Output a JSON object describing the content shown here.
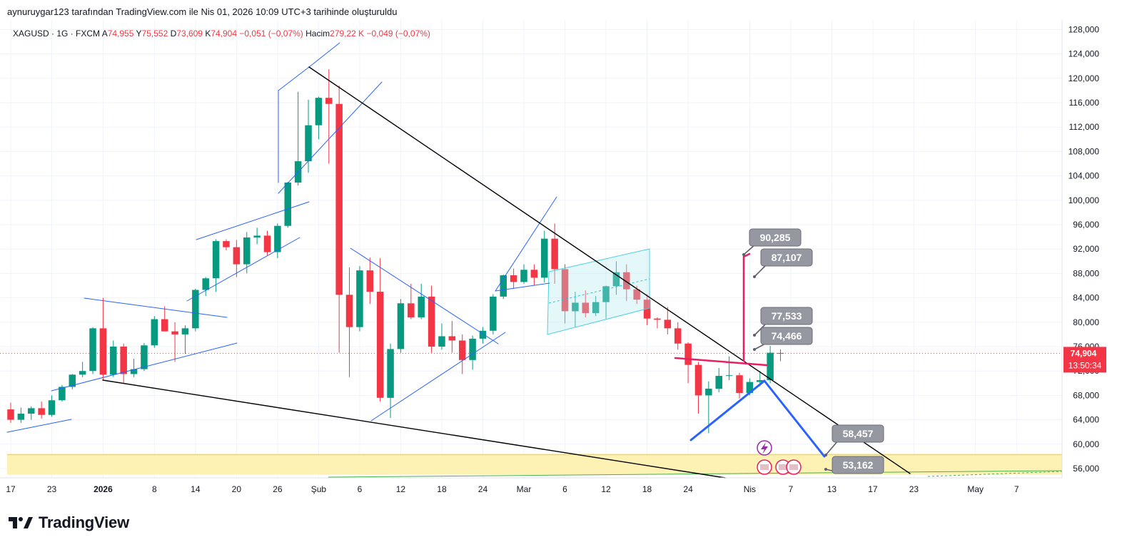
{
  "header": {
    "caption": "aynuruygar123 tarafından TradingView.com ile Nis 01, 2026 10:09 UTC+3 tarihinde oluşturuldu"
  },
  "logo": {
    "text": "TradingView",
    "icon": "tradingview-logo-icon"
  },
  "colors": {
    "up": "#089981",
    "down": "#f23645",
    "grid": "#f0f3fa",
    "zone": "#fdf2b3",
    "zone_line": "#f7d64f",
    "channel": "#2962ff",
    "trend": "#000000",
    "magenta": "#e91e63",
    "projection": "#2962ff",
    "label_bg": "#9598a1",
    "price_tag": "#f23645"
  },
  "chart_data": {
    "type": "candlestick",
    "symbol": "XAGUSD",
    "interval": "1G",
    "exchange": "FXCM",
    "info_line": {
      "symbol_text": "XAGUSD · 1G · FXCM",
      "open_label": "A",
      "open": "74,955",
      "high_label": "Y",
      "high": "75,552",
      "low_label": "D",
      "low": "73,609",
      "close_label": "K",
      "close": "74,904",
      "change": "−0,051 (−0,07%)",
      "volume_label": "Hacim",
      "volume": "279,22 K",
      "volume_change": "−0,049 (−0,07%)"
    },
    "y_axis": {
      "ticks": [
        "128,000",
        "124,000",
        "120,000",
        "116,000",
        "112,000",
        "108,000",
        "104,000",
        "100,000",
        "96,000",
        "92,000",
        "88,000",
        "84,000",
        "80,000",
        "76,000",
        "72,000",
        "68,000",
        "64,000",
        "60,000",
        "56,000"
      ],
      "range": [
        54.5,
        129
      ]
    },
    "x_axis": {
      "ticks": [
        {
          "label": "17",
          "i": 0
        },
        {
          "label": "23",
          "i": 4
        },
        {
          "label": "2026",
          "i": 9
        },
        {
          "label": "8",
          "i": 14
        },
        {
          "label": "14",
          "i": 18
        },
        {
          "label": "20",
          "i": 22
        },
        {
          "label": "26",
          "i": 26
        },
        {
          "label": "Şub",
          "i": 30
        },
        {
          "label": "6",
          "i": 34
        },
        {
          "label": "12",
          "i": 38
        },
        {
          "label": "18",
          "i": 42
        },
        {
          "label": "24",
          "i": 46
        },
        {
          "label": "Mar",
          "i": 50
        },
        {
          "label": "6",
          "i": 54
        },
        {
          "label": "12",
          "i": 58
        },
        {
          "label": "18",
          "i": 62
        },
        {
          "label": "24",
          "i": 66
        },
        {
          "label": "Nis",
          "i": 72
        },
        {
          "label": "7",
          "i": 76
        },
        {
          "label": "13",
          "i": 80
        },
        {
          "label": "17",
          "i": 84
        },
        {
          "label": "23",
          "i": 88
        },
        {
          "label": "May",
          "i": 94
        },
        {
          "label": "7",
          "i": 98
        }
      ]
    },
    "candles": [
      [
        65.7,
        66.8,
        63.5,
        64.0
      ],
      [
        64.0,
        66.0,
        63.5,
        65.0
      ],
      [
        65.0,
        66.2,
        64.0,
        65.9
      ],
      [
        65.9,
        67.0,
        64.2,
        64.8
      ],
      [
        64.8,
        68.0,
        64.5,
        67.2
      ],
      [
        67.2,
        69.7,
        67.0,
        69.4
      ],
      [
        69.4,
        71.5,
        69.0,
        71.4
      ],
      [
        71.4,
        73.5,
        71.0,
        72.0
      ],
      [
        72.0,
        79.2,
        71.5,
        79.0
      ],
      [
        79.0,
        84.0,
        70.5,
        71.4
      ],
      [
        71.4,
        77.0,
        71.0,
        76.0
      ],
      [
        76.0,
        76.5,
        70.0,
        71.5
      ],
      [
        71.5,
        74.0,
        71.0,
        72.3
      ],
      [
        72.3,
        76.6,
        72.0,
        76.2
      ],
      [
        76.2,
        81.0,
        75.8,
        80.5
      ],
      [
        80.5,
        82.6,
        78.5,
        78.5
      ],
      [
        78.5,
        80.0,
        73.5,
        78.0
      ],
      [
        78.0,
        79.5,
        74.8,
        79.0
      ],
      [
        79.0,
        85.5,
        78.5,
        85.3
      ],
      [
        85.3,
        87.4,
        84.3,
        87.2
      ],
      [
        87.2,
        93.6,
        85.0,
        93.3
      ],
      [
        93.3,
        93.6,
        91.8,
        92.3
      ],
      [
        92.3,
        93.5,
        87.4,
        89.5
      ],
      [
        89.5,
        94.8,
        88.0,
        93.9
      ],
      [
        93.9,
        95.5,
        92.8,
        94.2
      ],
      [
        94.2,
        95.0,
        91.0,
        91.5
      ],
      [
        91.5,
        96.2,
        90.5,
        95.8
      ],
      [
        95.8,
        103.0,
        95.5,
        102.9
      ],
      [
        102.9,
        117.8,
        102.4,
        106.4
      ],
      [
        106.4,
        116.5,
        104.5,
        112.3
      ],
      [
        112.3,
        117.0,
        110.0,
        116.8
      ],
      [
        116.8,
        121.5,
        106.0,
        115.8
      ],
      [
        115.8,
        118.8,
        75.0,
        84.5
      ],
      [
        84.5,
        89.0,
        71.0,
        79.2
      ],
      [
        79.2,
        89.2,
        78.5,
        88.5
      ],
      [
        88.5,
        90.6,
        83.0,
        85.0
      ],
      [
        85.0,
        90.5,
        67.0,
        67.6
      ],
      [
        67.6,
        76.5,
        64.3,
        75.6
      ],
      [
        75.6,
        83.8,
        75.0,
        83.1
      ],
      [
        83.1,
        86.3,
        80.5,
        80.8
      ],
      [
        80.8,
        86.3,
        80.5,
        84.2
      ],
      [
        84.2,
        86.0,
        75.0,
        76.0
      ],
      [
        76.0,
        79.8,
        75.5,
        77.7
      ],
      [
        77.7,
        80.2,
        75.0,
        77.0
      ],
      [
        77.0,
        78.0,
        71.5,
        73.8
      ],
      [
        73.8,
        77.8,
        72.2,
        77.3
      ],
      [
        77.3,
        79.2,
        76.5,
        78.6
      ],
      [
        78.6,
        84.6,
        78.0,
        84.2
      ],
      [
        84.2,
        87.8,
        83.8,
        87.7
      ],
      [
        87.7,
        88.8,
        85.5,
        86.6
      ],
      [
        86.6,
        89.5,
        86.3,
        88.6
      ],
      [
        88.6,
        89.5,
        86.0,
        87.3
      ],
      [
        87.3,
        95.0,
        86.5,
        93.7
      ],
      [
        93.7,
        96.2,
        86.3,
        88.7
      ],
      [
        88.7,
        89.5,
        79.8,
        81.8
      ],
      [
        81.8,
        85.0,
        79.2,
        83.2
      ],
      [
        83.2,
        85.2,
        80.8,
        81.5
      ],
      [
        81.5,
        84.3,
        81.0,
        83.3
      ],
      [
        83.3,
        86.0,
        80.6,
        85.9
      ],
      [
        85.9,
        90.0,
        84.5,
        88.2
      ],
      [
        88.2,
        89.5,
        83.5,
        85.4
      ],
      [
        85.4,
        86.0,
        83.0,
        83.7
      ],
      [
        83.7,
        84.6,
        79.5,
        80.6
      ],
      [
        80.6,
        80.8,
        79.0,
        80.4
      ],
      [
        80.4,
        82.5,
        78.0,
        79.0
      ],
      [
        79.0,
        80.0,
        75.5,
        76.5
      ],
      [
        76.5,
        76.7,
        70.0,
        73.0
      ],
      [
        73.0,
        73.5,
        65.0,
        68.0
      ],
      [
        68.0,
        70.3,
        61.8,
        69.1
      ],
      [
        69.1,
        72.5,
        68.5,
        71.2
      ],
      [
        71.2,
        74.4,
        70.5,
        71.3
      ],
      [
        71.3,
        71.7,
        67.5,
        68.4
      ],
      [
        68.4,
        70.8,
        68.0,
        70.2
      ],
      [
        70.2,
        72.0,
        69.5,
        70.5
      ],
      [
        70.5,
        76.1,
        70.0,
        75.0
      ],
      [
        74.955,
        75.552,
        73.609,
        74.904
      ]
    ],
    "annotations": {
      "price_labels": [
        "90,285",
        "87,107",
        "77,533",
        "74,466",
        "58,457",
        "53,162"
      ],
      "current_price": "74,904",
      "countdown": "13:50:34",
      "support_zone": [
        55.0,
        58.3
      ]
    }
  }
}
